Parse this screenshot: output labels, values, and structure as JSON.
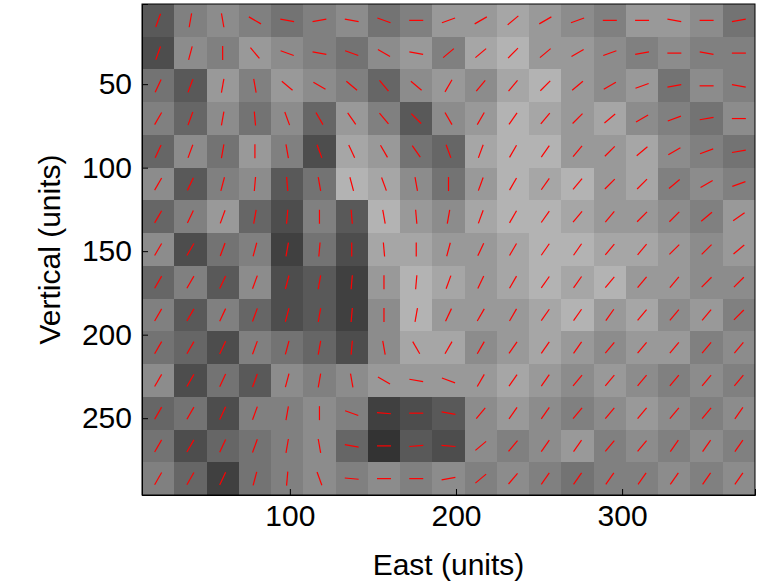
{
  "chart_data": {
    "type": "heatmap",
    "xlabel": "East (units)",
    "ylabel": "Vertical (units)",
    "xlim": [
      11,
      380
    ],
    "xticks": [
      100,
      200,
      300
    ],
    "ylim": [
      296,
      2
    ],
    "yticks": [
      50,
      100,
      150,
      200,
      250
    ],
    "color": "#ff0000",
    "cells": [
      [
        0.35,
        0.5,
        0.55,
        0.5,
        0.45,
        0.5,
        0.55,
        0.45,
        0.5,
        0.6,
        0.6,
        0.65,
        0.6,
        0.55,
        0.5,
        0.6,
        0.6,
        0.55,
        0.45
      ],
      [
        0.3,
        0.55,
        0.5,
        0.6,
        0.55,
        0.5,
        0.45,
        0.55,
        0.6,
        0.5,
        0.65,
        0.7,
        0.6,
        0.6,
        0.55,
        0.5,
        0.55,
        0.5,
        0.5
      ],
      [
        0.45,
        0.35,
        0.6,
        0.5,
        0.6,
        0.55,
        0.5,
        0.4,
        0.55,
        0.6,
        0.55,
        0.65,
        0.7,
        0.6,
        0.55,
        0.6,
        0.45,
        0.55,
        0.5
      ],
      [
        0.5,
        0.4,
        0.55,
        0.45,
        0.55,
        0.4,
        0.6,
        0.5,
        0.35,
        0.55,
        0.6,
        0.7,
        0.65,
        0.6,
        0.65,
        0.55,
        0.5,
        0.45,
        0.55
      ],
      [
        0.4,
        0.55,
        0.45,
        0.6,
        0.5,
        0.3,
        0.65,
        0.6,
        0.45,
        0.4,
        0.65,
        0.7,
        0.7,
        0.6,
        0.6,
        0.65,
        0.55,
        0.5,
        0.45
      ],
      [
        0.55,
        0.35,
        0.5,
        0.55,
        0.35,
        0.45,
        0.7,
        0.65,
        0.55,
        0.45,
        0.6,
        0.7,
        0.65,
        0.7,
        0.6,
        0.65,
        0.5,
        0.55,
        0.5
      ],
      [
        0.4,
        0.5,
        0.6,
        0.4,
        0.3,
        0.5,
        0.35,
        0.7,
        0.6,
        0.55,
        0.65,
        0.7,
        0.7,
        0.65,
        0.6,
        0.6,
        0.55,
        0.5,
        0.6
      ],
      [
        0.55,
        0.3,
        0.45,
        0.5,
        0.25,
        0.45,
        0.3,
        0.65,
        0.65,
        0.6,
        0.6,
        0.65,
        0.7,
        0.7,
        0.65,
        0.65,
        0.6,
        0.55,
        0.6
      ],
      [
        0.4,
        0.5,
        0.35,
        0.55,
        0.3,
        0.35,
        0.25,
        0.6,
        0.7,
        0.65,
        0.6,
        0.65,
        0.7,
        0.65,
        0.7,
        0.6,
        0.6,
        0.55,
        0.55
      ],
      [
        0.5,
        0.35,
        0.5,
        0.4,
        0.3,
        0.35,
        0.25,
        0.55,
        0.7,
        0.6,
        0.6,
        0.6,
        0.65,
        0.7,
        0.6,
        0.65,
        0.55,
        0.6,
        0.5
      ],
      [
        0.45,
        0.4,
        0.3,
        0.5,
        0.45,
        0.4,
        0.3,
        0.55,
        0.65,
        0.65,
        0.55,
        0.6,
        0.65,
        0.6,
        0.55,
        0.6,
        0.6,
        0.5,
        0.55
      ],
      [
        0.55,
        0.3,
        0.45,
        0.35,
        0.55,
        0.5,
        0.55,
        0.6,
        0.6,
        0.6,
        0.6,
        0.65,
        0.6,
        0.55,
        0.6,
        0.55,
        0.5,
        0.55,
        0.5
      ],
      [
        0.4,
        0.45,
        0.3,
        0.5,
        0.5,
        0.55,
        0.5,
        0.25,
        0.3,
        0.35,
        0.55,
        0.6,
        0.55,
        0.5,
        0.55,
        0.6,
        0.55,
        0.5,
        0.55
      ],
      [
        0.45,
        0.3,
        0.4,
        0.45,
        0.5,
        0.55,
        0.4,
        0.2,
        0.35,
        0.3,
        0.55,
        0.5,
        0.55,
        0.6,
        0.5,
        0.55,
        0.5,
        0.55,
        0.5
      ],
      [
        0.5,
        0.4,
        0.25,
        0.45,
        0.5,
        0.55,
        0.5,
        0.55,
        0.5,
        0.55,
        0.5,
        0.55,
        0.5,
        0.45,
        0.5,
        0.5,
        0.55,
        0.5,
        0.55
      ]
    ],
    "angles": [
      [
        70,
        80,
        100,
        150,
        170,
        10,
        170,
        160,
        0,
        20,
        30,
        40,
        30,
        20,
        0,
        0,
        170,
        0,
        10
      ],
      [
        70,
        75,
        90,
        130,
        160,
        170,
        160,
        150,
        170,
        40,
        40,
        45,
        40,
        30,
        20,
        10,
        0,
        170,
        0
      ],
      [
        65,
        70,
        80,
        100,
        140,
        150,
        140,
        130,
        140,
        60,
        50,
        50,
        45,
        40,
        30,
        20,
        10,
        0,
        170
      ],
      [
        60,
        70,
        80,
        95,
        110,
        120,
        125,
        130,
        135,
        120,
        60,
        55,
        50,
        45,
        40,
        30,
        20,
        10,
        0
      ],
      [
        65,
        70,
        80,
        90,
        100,
        110,
        115,
        120,
        125,
        110,
        70,
        60,
        55,
        50,
        45,
        40,
        30,
        20,
        10
      ],
      [
        60,
        65,
        75,
        85,
        95,
        100,
        105,
        110,
        100,
        90,
        70,
        60,
        55,
        50,
        45,
        45,
        40,
        30,
        20
      ],
      [
        60,
        65,
        70,
        80,
        85,
        90,
        95,
        100,
        95,
        80,
        70,
        60,
        55,
        50,
        50,
        45,
        45,
        40,
        35
      ],
      [
        60,
        60,
        70,
        75,
        80,
        85,
        90,
        95,
        90,
        75,
        65,
        60,
        55,
        55,
        50,
        50,
        45,
        45,
        40
      ],
      [
        60,
        60,
        65,
        70,
        75,
        80,
        85,
        90,
        85,
        70,
        65,
        60,
        55,
        55,
        50,
        50,
        50,
        45,
        45
      ],
      [
        60,
        60,
        65,
        70,
        75,
        80,
        85,
        90,
        80,
        65,
        60,
        60,
        55,
        55,
        55,
        50,
        50,
        50,
        45
      ],
      [
        60,
        60,
        65,
        70,
        75,
        80,
        85,
        100,
        120,
        60,
        60,
        55,
        55,
        55,
        50,
        50,
        50,
        50,
        50
      ],
      [
        60,
        60,
        65,
        70,
        75,
        80,
        100,
        150,
        170,
        160,
        60,
        55,
        55,
        50,
        50,
        50,
        50,
        50,
        50
      ],
      [
        60,
        60,
        65,
        70,
        80,
        90,
        160,
        175,
        0,
        170,
        50,
        55,
        55,
        50,
        50,
        50,
        50,
        50,
        55
      ],
      [
        60,
        60,
        65,
        70,
        80,
        100,
        170,
        0,
        5,
        175,
        40,
        50,
        55,
        55,
        50,
        50,
        55,
        55,
        55
      ],
      [
        60,
        60,
        65,
        75,
        85,
        110,
        175,
        0,
        0,
        10,
        40,
        50,
        55,
        55,
        55,
        55,
        55,
        55,
        55
      ]
    ]
  }
}
